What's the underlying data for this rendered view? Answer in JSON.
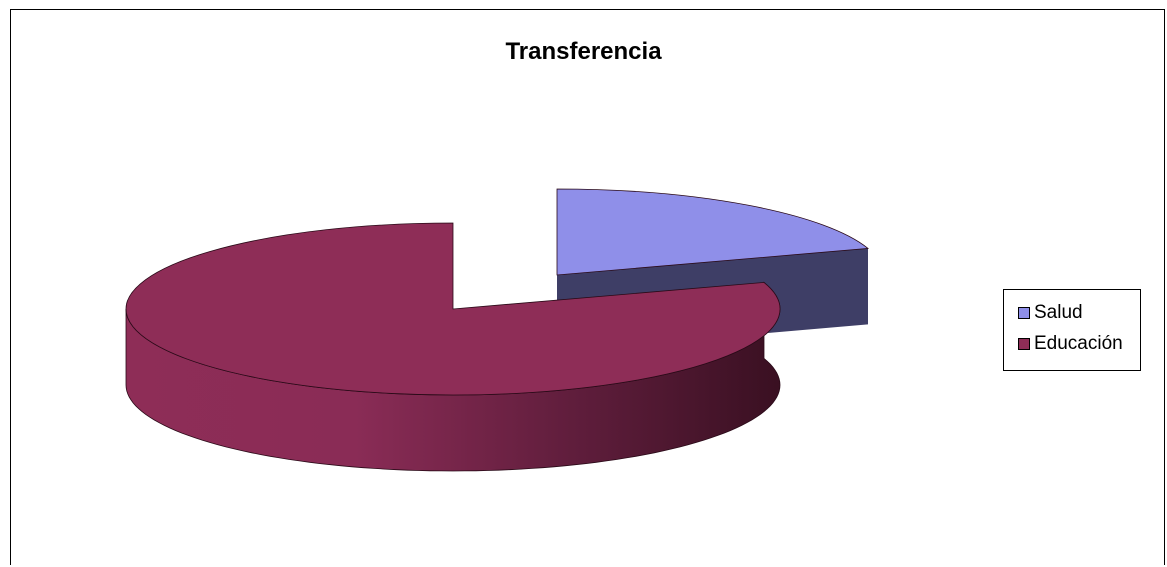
{
  "chart_data": {
    "type": "pie",
    "title": "Transferencia",
    "categories": [
      "Salud",
      "Educación"
    ],
    "values": [
      20,
      80
    ],
    "colors": [
      "#8f8fe9",
      "#8e2d57"
    ],
    "side_colors": [
      "#3e3e66",
      "#8e2d57"
    ],
    "exploded": [
      "Salud"
    ],
    "three_d": true,
    "legend": "right"
  }
}
